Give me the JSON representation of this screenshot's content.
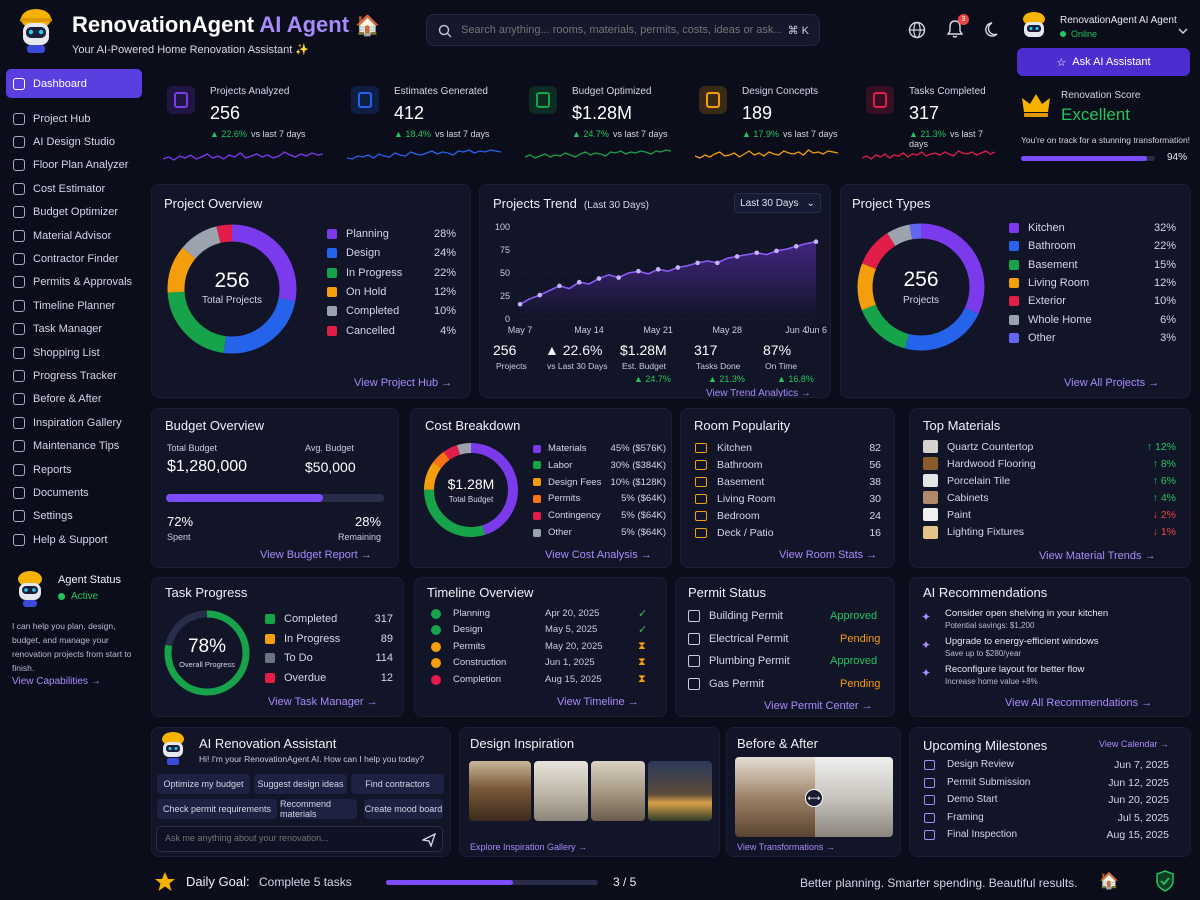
{
  "header": {
    "title_main": "RenovationAgent",
    "title_accent": "AI Agent",
    "subtitle": "Your AI-Powered Home Renovation Assistant ✨",
    "search_placeholder": "Search anything... rooms, materials, permits, costs, ideas or ask...",
    "search_shortcut": "⌘ K",
    "notification_count": "3",
    "user_name": "RenovationAgent AI Agent",
    "user_status": "Online",
    "ask_button": "Ask AI Assistant"
  },
  "sidebar": {
    "items": [
      {
        "label": "Dashboard",
        "icon": "grid-icon",
        "active": true
      },
      {
        "label": "Project Hub",
        "icon": "folder-icon"
      },
      {
        "label": "AI Design Studio",
        "icon": "sparkle-icon"
      },
      {
        "label": "Floor Plan Analyzer",
        "icon": "floorplan-icon"
      },
      {
        "label": "Cost Estimator",
        "icon": "calculator-icon"
      },
      {
        "label": "Budget Optimizer",
        "icon": "wallet-icon"
      },
      {
        "label": "Material Advisor",
        "icon": "layers-icon"
      },
      {
        "label": "Contractor Finder",
        "icon": "user-icon"
      },
      {
        "label": "Permits & Approvals",
        "icon": "document-icon"
      },
      {
        "label": "Timeline Planner",
        "icon": "calendar-icon"
      },
      {
        "label": "Task Manager",
        "icon": "checklist-icon"
      },
      {
        "label": "Shopping List",
        "icon": "cart-icon"
      },
      {
        "label": "Progress Tracker",
        "icon": "chart-icon"
      },
      {
        "label": "Before & After",
        "icon": "compare-icon"
      },
      {
        "label": "Inspiration Gallery",
        "icon": "image-icon"
      },
      {
        "label": "Maintenance Tips",
        "icon": "wrench-icon"
      },
      {
        "label": "Reports",
        "icon": "report-icon"
      },
      {
        "label": "Documents",
        "icon": "file-icon"
      },
      {
        "label": "Settings",
        "icon": "gear-icon"
      },
      {
        "label": "Help & Support",
        "icon": "help-icon"
      }
    ],
    "agent_title": "Agent Status",
    "agent_status": "Active",
    "agent_desc": "I can help you plan, design, budget, and manage your renovation projects from start to finish.",
    "agent_link": "View Capabilities →"
  },
  "stats": [
    {
      "label": "Projects Analyzed",
      "value": "256",
      "delta": "▲ 22.6%",
      "suffix": "vs last 7 days",
      "color": "#7c3aed",
      "icon": "clipboard-icon"
    },
    {
      "label": "Estimates Generated",
      "value": "412",
      "delta": "▲ 18.4%",
      "suffix": "vs last 7 days",
      "color": "#2563eb",
      "icon": "chat-icon"
    },
    {
      "label": "Budget Optimized",
      "value": "$1.28M",
      "delta": "▲ 24.7%",
      "suffix": "vs last 7 days",
      "color": "#16a34a",
      "icon": "clock-icon"
    },
    {
      "label": "Design Concepts",
      "value": "189",
      "delta": "▲ 17.9%",
      "suffix": "vs last 7 days",
      "color": "#f59e0b",
      "icon": "design-icon"
    },
    {
      "label": "Tasks Completed",
      "value": "317",
      "delta": "▲ 21.3%",
      "suffix": "vs last 7 days",
      "color": "#e11d48",
      "icon": "tasklist-icon"
    }
  ],
  "score": {
    "label": "Renovation Score",
    "value": "Excellent",
    "desc": "You're on track for a stunning transformation!",
    "percent": "94%",
    "fill": 0.94
  },
  "project_overview": {
    "title": "Project Overview",
    "center_value": "256",
    "center_label": "Total Projects",
    "link": "View Project Hub →",
    "items": [
      {
        "label": "Planning",
        "pct": "28%",
        "value": 28,
        "color": "#7c3aed"
      },
      {
        "label": "Design",
        "pct": "24%",
        "value": 24,
        "color": "#2563eb"
      },
      {
        "label": "In Progress",
        "pct": "22%",
        "value": 22,
        "color": "#16a34a"
      },
      {
        "label": "On Hold",
        "pct": "12%",
        "value": 12,
        "color": "#f59e0b"
      },
      {
        "label": "Completed",
        "pct": "10%",
        "value": 10,
        "color": "#9ca3af"
      },
      {
        "label": "Cancelled",
        "pct": "4%",
        "value": 4,
        "color": "#e11d48"
      }
    ]
  },
  "trend": {
    "title": "Projects Trend",
    "subtitle": "(Last 30 Days)",
    "range": "Last 30 Days",
    "link": "View Trend Analytics →",
    "summary": [
      {
        "value": "256",
        "label": "Projects",
        "delta": ""
      },
      {
        "value": "▲ 22.6%",
        "label": "vs Last 30 Days",
        "delta": ""
      },
      {
        "value": "$1.28M",
        "label": "Est. Budget",
        "delta": "▲ 24.7%"
      },
      {
        "value": "317",
        "label": "Tasks Done",
        "delta": "▲ 21.3%"
      },
      {
        "value": "87%",
        "label": "On Time",
        "delta": "▲ 16.8%"
      }
    ]
  },
  "chart_data": {
    "type": "line",
    "title": "Projects Trend",
    "x": [
      "May 7",
      "May 8",
      "May 9",
      "May 10",
      "May 11",
      "May 12",
      "May 13",
      "May 14",
      "May 15",
      "May 16",
      "May 17",
      "May 18",
      "May 19",
      "May 20",
      "May 21",
      "May 22",
      "May 23",
      "May 24",
      "May 25",
      "May 26",
      "May 27",
      "May 28",
      "May 29",
      "May 30",
      "May 31",
      "Jun 1",
      "Jun 2",
      "Jun 3",
      "Jun 4",
      "Jun 5",
      "Jun 6"
    ],
    "xticks": [
      "May 7",
      "May 14",
      "May 21",
      "May 28",
      "Jun 4",
      "Jun 6"
    ],
    "yticks": [
      "0",
      "25",
      "50",
      "75",
      "100"
    ],
    "ylim": [
      0,
      100
    ],
    "series": [
      {
        "values": [
          16,
          22,
          26,
          31,
          36,
          33,
          40,
          38,
          44,
          48,
          45,
          50,
          52,
          49,
          54,
          52,
          56,
          58,
          61,
          63,
          61,
          66,
          68,
          70,
          72,
          70,
          74,
          76,
          79,
          82,
          84
        ]
      }
    ]
  },
  "project_types": {
    "title": "Project Types",
    "center_value": "256",
    "center_label": "Projects",
    "link": "View All Projects →",
    "items": [
      {
        "label": "Kitchen",
        "pct": "32%",
        "value": 32,
        "color": "#7c3aed"
      },
      {
        "label": "Bathroom",
        "pct": "22%",
        "value": 22,
        "color": "#2563eb"
      },
      {
        "label": "Basement",
        "pct": "15%",
        "value": 15,
        "color": "#16a34a"
      },
      {
        "label": "Living Room",
        "pct": "12%",
        "value": 12,
        "color": "#f59e0b"
      },
      {
        "label": "Exterior",
        "pct": "10%",
        "value": 10,
        "color": "#e11d48"
      },
      {
        "label": "Whole Home",
        "pct": "6%",
        "value": 6,
        "color": "#9ca3af"
      },
      {
        "label": "Other",
        "pct": "3%",
        "value": 3,
        "color": "#6366f1"
      }
    ]
  },
  "budget": {
    "title": "Budget Overview",
    "total_label": "Total Budget",
    "total_value": "$1,280,000",
    "avg_label": "Avg. Budget",
    "avg_value": "$50,000",
    "spent_pct": "72%",
    "spent_label": "Spent",
    "remaining_pct": "28%",
    "remaining_label": "Remaining",
    "fill": 0.72,
    "link": "View Budget Report →"
  },
  "cost": {
    "title": "Cost Breakdown",
    "center_value": "$1.28M",
    "center_label": "Total Budget",
    "link": "View Cost Analysis →",
    "items": [
      {
        "label": "Materials",
        "pct": "45% ($576K)",
        "value": 45,
        "color": "#7c3aed"
      },
      {
        "label": "Labor",
        "pct": "30% ($384K)",
        "value": 30,
        "color": "#16a34a"
      },
      {
        "label": "Design Fees",
        "pct": "10% ($128K)",
        "value": 10,
        "color": "#f59e0b"
      },
      {
        "label": "Permits",
        "pct": "5% ($64K)",
        "value": 5,
        "color": "#f97316"
      },
      {
        "label": "Contingency",
        "pct": "5% ($64K)",
        "value": 5,
        "color": "#e11d48"
      },
      {
        "label": "Other",
        "pct": "5% ($64K)",
        "value": 5,
        "color": "#9ca3af"
      }
    ]
  },
  "rooms": {
    "title": "Room Popularity",
    "link": "View Room Stats →",
    "items": [
      {
        "label": "Kitchen",
        "value": "82"
      },
      {
        "label": "Bathroom",
        "value": "56"
      },
      {
        "label": "Basement",
        "value": "38"
      },
      {
        "label": "Living Room",
        "value": "30"
      },
      {
        "label": "Bedroom",
        "value": "24"
      },
      {
        "label": "Deck / Patio",
        "value": "16"
      }
    ]
  },
  "materials": {
    "title": "Top Materials",
    "link": "View Material Trends →",
    "items": [
      {
        "label": "Quartz Countertop",
        "value": "↑ 12%",
        "up": true,
        "color": "#d6d3ce"
      },
      {
        "label": "Hardwood Flooring",
        "value": "↑ 8%",
        "up": true,
        "color": "#8b5a2b"
      },
      {
        "label": "Porcelain Tile",
        "value": "↑ 6%",
        "up": true,
        "color": "#e5e5e5"
      },
      {
        "label": "Cabinets",
        "value": "↑ 4%",
        "up": true,
        "color": "#b08968"
      },
      {
        "label": "Paint",
        "value": "↓ 2%",
        "up": false,
        "color": "#f1f1f1"
      },
      {
        "label": "Lighting Fixtures",
        "value": "↓ 1%",
        "up": false,
        "color": "#e2c48a"
      }
    ]
  },
  "tasks": {
    "title": "Task Progress",
    "center_value": "78%",
    "center_label": "Overall Progress",
    "fill": 0.78,
    "link": "View Task Manager →",
    "items": [
      {
        "label": "Completed",
        "value": "317",
        "color": "#16a34a"
      },
      {
        "label": "In Progress",
        "value": "89",
        "color": "#f59e0b"
      },
      {
        "label": "To Do",
        "value": "114",
        "color": "#6b7280"
      },
      {
        "label": "Overdue",
        "value": "12",
        "color": "#e11d48"
      }
    ]
  },
  "timeline": {
    "title": "Timeline Overview",
    "link": "View Timeline →",
    "items": [
      {
        "label": "Planning",
        "date": "Apr 20, 2025",
        "status": "✓",
        "color": "#16a34a"
      },
      {
        "label": "Design",
        "date": "May 5, 2025",
        "status": "✓",
        "color": "#16a34a"
      },
      {
        "label": "Permits",
        "date": "May 20, 2025",
        "status": "⧗",
        "color": "#f59e0b"
      },
      {
        "label": "Construction",
        "date": "Jun 1, 2025",
        "status": "⧗",
        "color": "#f59e0b"
      },
      {
        "label": "Completion",
        "date": "Aug 15, 2025",
        "status": "⧗",
        "color": "#e11d48"
      }
    ]
  },
  "permits": {
    "title": "Permit Status",
    "link": "View Permit Center →",
    "items": [
      {
        "label": "Building Permit",
        "status": "Approved",
        "approved": true
      },
      {
        "label": "Electrical Permit",
        "status": "Pending",
        "approved": false
      },
      {
        "label": "Plumbing Permit",
        "status": "Approved",
        "approved": true
      },
      {
        "label": "Gas Permit",
        "status": "Pending",
        "approved": false
      }
    ]
  },
  "recs": {
    "title": "AI Recommendations",
    "link": "View All Recommendations →",
    "items": [
      {
        "title": "Consider open shelving in your kitchen",
        "sub": "Potential savings: $1,200"
      },
      {
        "title": "Upgrade to energy-efficient windows",
        "sub": "Save up to $280/year"
      },
      {
        "title": "Reconfigure layout for better flow",
        "sub": "Increase home value +8%"
      }
    ]
  },
  "assistant": {
    "title": "AI Renovation Assistant",
    "greeting": "Hi! I'm your RenovationAgent AI. How can I help you today?",
    "chips": [
      "Optimize my budget",
      "Suggest design ideas",
      "Find contractors",
      "Check permit requirements",
      "Recommend materials",
      "Create mood board"
    ],
    "input_placeholder": "Ask me anything about your renovation..."
  },
  "inspiration": {
    "title": "Design Inspiration",
    "link": "Explore Inspiration Gallery →"
  },
  "before_after": {
    "title": "Before & After",
    "link": "View Transformations →"
  },
  "milestones": {
    "title": "Upcoming Milestones",
    "link": "View Calendar →",
    "items": [
      {
        "label": "Design Review",
        "date": "Jun 7, 2025"
      },
      {
        "label": "Permit Submission",
        "date": "Jun 12, 2025"
      },
      {
        "label": "Demo Start",
        "date": "Jun 20, 2025"
      },
      {
        "label": "Framing",
        "date": "Jul 5, 2025"
      },
      {
        "label": "Final Inspection",
        "date": "Aug 15, 2025"
      }
    ]
  },
  "footer": {
    "goal_label": "Daily Goal:",
    "goal_text": "Complete 5 tasks",
    "goal_count": "3 / 5",
    "goal_fill": 0.6,
    "tagline": "Better planning. Smarter spending. Beautiful results."
  }
}
